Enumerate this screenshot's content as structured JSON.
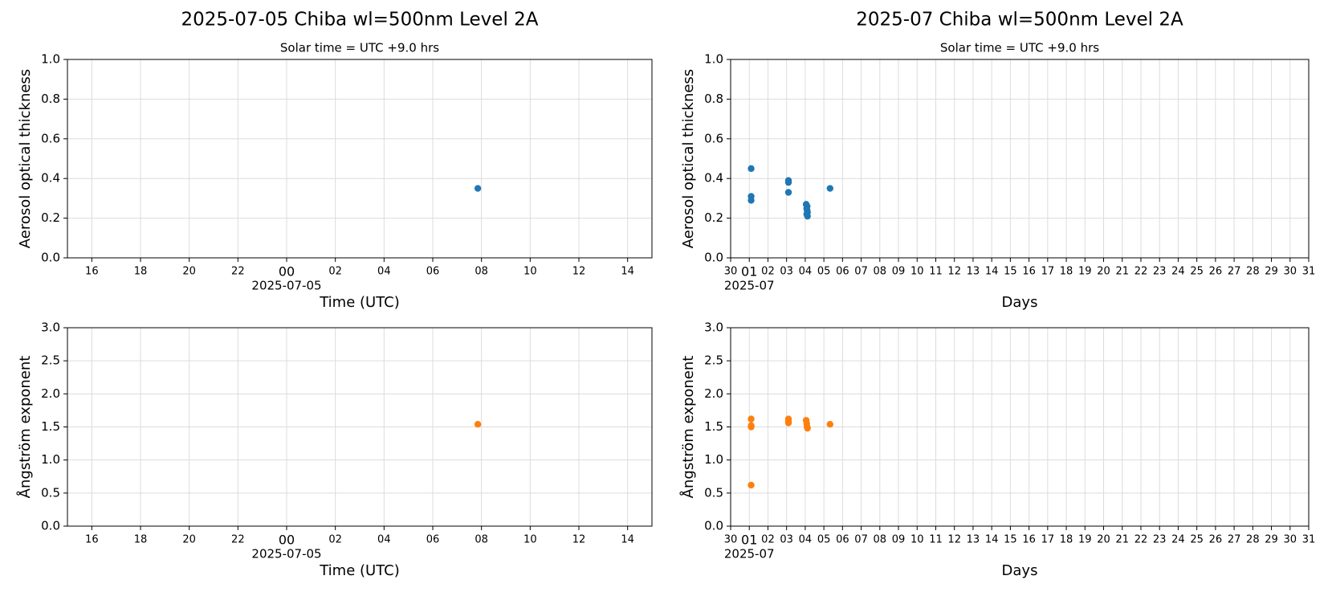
{
  "chart_data": [
    {
      "type": "scatter",
      "title": "2025-07-05  Chiba  wl=500nm  Level 2A",
      "subtitle": "Solar time = UTC +9.0 hrs",
      "xlabel": "Time (UTC)",
      "ylabel": "Aerosol optical thickness",
      "x_offset_label": "2025-07-05",
      "x": [
        7.85
      ],
      "values": [
        0.35
      ],
      "color": "#1f77b4",
      "xlim": [
        -9,
        15
      ],
      "xticks": [
        {
          "value": -8,
          "label": "16"
        },
        {
          "value": -6,
          "label": "18"
        },
        {
          "value": -4,
          "label": "20"
        },
        {
          "value": -2,
          "label": "22"
        },
        {
          "value": 0,
          "label": "00"
        },
        {
          "value": 2,
          "label": "02"
        },
        {
          "value": 4,
          "label": "04"
        },
        {
          "value": 6,
          "label": "06"
        },
        {
          "value": 8,
          "label": "08"
        },
        10,
        12,
        14
      ],
      "ylim": [
        0,
        1
      ],
      "yticks": [
        {
          "value": 0,
          "label": "0.0"
        },
        0.2,
        0.4,
        0.6,
        0.8,
        {
          "value": 1,
          "label": "1.0"
        }
      ],
      "grid": true
    },
    {
      "type": "scatter",
      "title": "2025-07  Chiba  wl=500nm  Level 2A",
      "subtitle": "Solar time = UTC +9.0 hrs",
      "xlabel": "Days",
      "ylabel": "Aerosol optical thickness",
      "x_offset_label": "2025-07",
      "x": [
        1.1,
        1.1,
        1.1,
        3.1,
        3.1,
        3.1,
        4.05,
        4.08,
        4.08,
        4.1,
        4.1,
        4.12,
        4.12,
        5.33
      ],
      "values": [
        0.45,
        0.31,
        0.29,
        0.39,
        0.38,
        0.33,
        0.27,
        0.25,
        0.22,
        0.26,
        0.24,
        0.21,
        0.23,
        0.35
      ],
      "color": "#1f77b4",
      "xlim": [
        0,
        31
      ],
      "xticks": [
        {
          "value": 0,
          "label": "30"
        },
        {
          "value": 1,
          "label": "01"
        },
        {
          "value": 2,
          "label": "02"
        },
        {
          "value": 3,
          "label": "03"
        },
        {
          "value": 4,
          "label": "04"
        },
        {
          "value": 5,
          "label": "05"
        },
        {
          "value": 6,
          "label": "06"
        },
        {
          "value": 7,
          "label": "07"
        },
        {
          "value": 8,
          "label": "08"
        },
        {
          "value": 9,
          "label": "09"
        },
        10,
        11,
        12,
        13,
        14,
        15,
        16,
        17,
        18,
        19,
        20,
        21,
        22,
        23,
        24,
        25,
        26,
        27,
        28,
        29,
        30,
        31
      ],
      "ylim": [
        0,
        1
      ],
      "yticks": [
        {
          "value": 0,
          "label": "0.0"
        },
        0.2,
        0.4,
        0.6,
        0.8,
        {
          "value": 1,
          "label": "1.0"
        }
      ],
      "grid": true
    },
    {
      "type": "scatter",
      "xlabel": "Time (UTC)",
      "ylabel": "Ångström exponent",
      "x_offset_label": "2025-07-05",
      "x": [
        7.85
      ],
      "values": [
        1.54
      ],
      "color": "#ff7f0e",
      "xlim": [
        -9,
        15
      ],
      "xticks": [
        {
          "value": -8,
          "label": "16"
        },
        {
          "value": -6,
          "label": "18"
        },
        {
          "value": -4,
          "label": "20"
        },
        {
          "value": -2,
          "label": "22"
        },
        {
          "value": 0,
          "label": "00"
        },
        {
          "value": 2,
          "label": "02"
        },
        {
          "value": 4,
          "label": "04"
        },
        {
          "value": 6,
          "label": "06"
        },
        {
          "value": 8,
          "label": "08"
        },
        10,
        12,
        14
      ],
      "ylim": [
        0,
        3
      ],
      "yticks": [
        {
          "value": 0,
          "label": "0.0"
        },
        0.5,
        {
          "value": 1,
          "label": "1.0"
        },
        1.5,
        {
          "value": 2,
          "label": "2.0"
        },
        2.5,
        {
          "value": 3,
          "label": "3.0"
        }
      ],
      "grid": true
    },
    {
      "type": "scatter",
      "xlabel": "Days",
      "ylabel": "Ångström exponent",
      "x_offset_label": "2025-07",
      "x": [
        1.1,
        1.1,
        1.1,
        1.1,
        3.1,
        3.1,
        3.1,
        4.05,
        4.08,
        4.1,
        4.12,
        5.33
      ],
      "values": [
        1.62,
        1.52,
        1.5,
        0.62,
        1.62,
        1.58,
        1.56,
        1.6,
        1.55,
        1.5,
        1.48,
        1.54
      ],
      "color": "#ff7f0e",
      "xlim": [
        0,
        31
      ],
      "xticks": [
        {
          "value": 0,
          "label": "30"
        },
        {
          "value": 1,
          "label": "01"
        },
        {
          "value": 2,
          "label": "02"
        },
        {
          "value": 3,
          "label": "03"
        },
        {
          "value": 4,
          "label": "04"
        },
        {
          "value": 5,
          "label": "05"
        },
        {
          "value": 6,
          "label": "06"
        },
        {
          "value": 7,
          "label": "07"
        },
        {
          "value": 8,
          "label": "08"
        },
        {
          "value": 9,
          "label": "09"
        },
        10,
        11,
        12,
        13,
        14,
        15,
        16,
        17,
        18,
        19,
        20,
        21,
        22,
        23,
        24,
        25,
        26,
        27,
        28,
        29,
        30,
        31
      ],
      "ylim": [
        0,
        3
      ],
      "yticks": [
        {
          "value": 0,
          "label": "0.0"
        },
        0.5,
        {
          "value": 1,
          "label": "1.0"
        },
        1.5,
        {
          "value": 2,
          "label": "2.0"
        },
        2.5,
        {
          "value": 3,
          "label": "3.0"
        }
      ],
      "grid": true
    }
  ]
}
